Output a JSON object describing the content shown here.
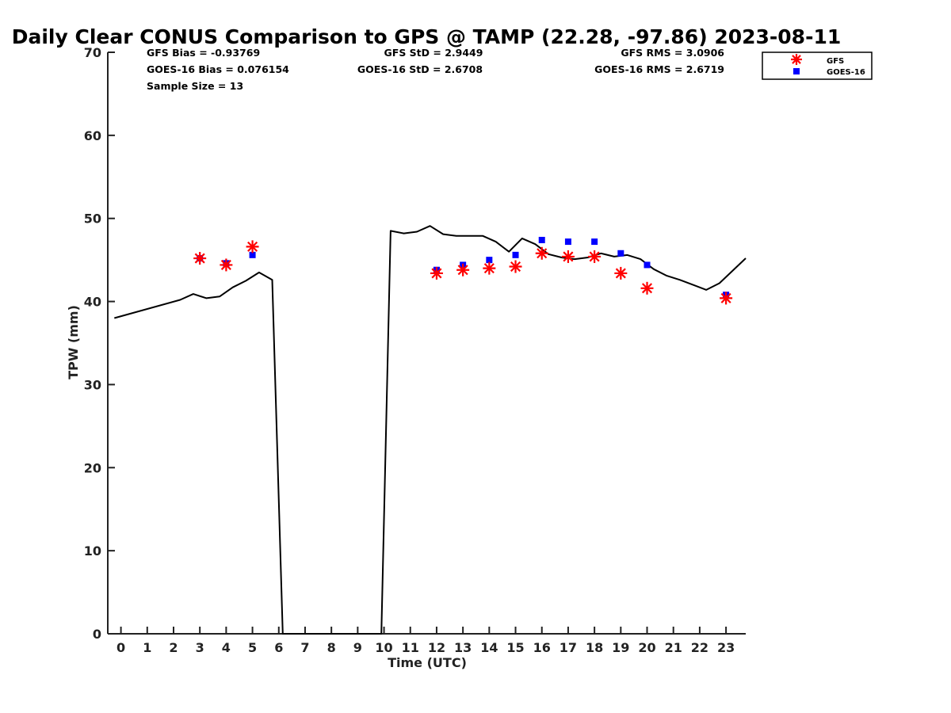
{
  "chart_data": {
    "type": "scatter",
    "title": "Daily Clear CONUS Comparison to GPS @ TAMP (22.28, -97.86) 2023-08-11",
    "xlabel": "Time (UTC)",
    "ylabel": "TPW (mm)",
    "xlim": [
      -0.5,
      23.75
    ],
    "ylim": [
      0,
      70
    ],
    "xticks": [
      "0",
      "1",
      "2",
      "3",
      "4",
      "5",
      "6",
      "7",
      "8",
      "9",
      "10",
      "11",
      "12",
      "13",
      "14",
      "15",
      "16",
      "17",
      "18",
      "19",
      "20",
      "21",
      "22",
      "23"
    ],
    "yticks": [
      "0",
      "10",
      "20",
      "30",
      "40",
      "50",
      "60",
      "70"
    ],
    "grid": false,
    "legend_position": "top-right (outside axes)",
    "stats": {
      "gfs_bias": "GFS Bias = -0.93769",
      "gfs_std": "GFS StD = 2.9449",
      "gfs_rms": "GFS RMS = 3.0906",
      "goes_bias": "GOES-16 Bias = 0.076154",
      "goes_std": "GOES-16 StD = 2.6708",
      "goes_rms": "GOES-16 RMS = 2.6719",
      "sample_size": "Sample Size = 13"
    },
    "series": [
      {
        "name": "GFS",
        "marker": "asterisk",
        "color": "#ff0000",
        "points": [
          [
            3.0,
            45.2
          ],
          [
            4.0,
            44.4
          ],
          [
            5.0,
            46.6
          ],
          [
            12.0,
            43.4
          ],
          [
            13.0,
            43.8
          ],
          [
            14.0,
            44.0
          ],
          [
            15.0,
            44.2
          ],
          [
            16.0,
            45.8
          ],
          [
            17.0,
            45.4
          ],
          [
            18.0,
            45.4
          ],
          [
            19.0,
            43.4
          ],
          [
            20.0,
            41.6
          ],
          [
            23.0,
            40.4
          ]
        ]
      },
      {
        "name": "GOES-16",
        "marker": "square",
        "color": "#0000ff",
        "points": [
          [
            3.0,
            45.2
          ],
          [
            4.0,
            44.6
          ],
          [
            5.0,
            45.6
          ],
          [
            12.0,
            43.8
          ],
          [
            13.0,
            44.4
          ],
          [
            14.0,
            45.0
          ],
          [
            15.0,
            45.6
          ],
          [
            16.0,
            47.4
          ],
          [
            17.0,
            47.2
          ],
          [
            18.0,
            47.2
          ],
          [
            19.0,
            45.8
          ],
          [
            20.0,
            44.4
          ],
          [
            23.0,
            40.8
          ]
        ]
      },
      {
        "name": "GPS",
        "line": true,
        "color": "#000000",
        "points": [
          [
            -0.25,
            38.0
          ],
          [
            2.25,
            40.2
          ],
          [
            2.75,
            40.9
          ],
          [
            3.25,
            40.4
          ],
          [
            3.75,
            40.6
          ],
          [
            4.25,
            41.7
          ],
          [
            4.75,
            42.5
          ],
          [
            5.25,
            43.5
          ],
          [
            5.75,
            42.6
          ],
          [
            6.15,
            0
          ],
          [
            9.9,
            0
          ],
          [
            10.25,
            48.5
          ],
          [
            10.75,
            48.2
          ],
          [
            11.25,
            48.4
          ],
          [
            11.75,
            49.1
          ],
          [
            12.25,
            48.1
          ],
          [
            12.75,
            47.9
          ],
          [
            13.25,
            47.9
          ],
          [
            13.75,
            47.9
          ],
          [
            14.25,
            47.2
          ],
          [
            14.75,
            46.0
          ],
          [
            15.25,
            47.6
          ],
          [
            15.75,
            46.9
          ],
          [
            16.25,
            45.7
          ],
          [
            16.75,
            45.3
          ],
          [
            17.25,
            45.1
          ],
          [
            17.75,
            45.3
          ],
          [
            18.25,
            45.8
          ],
          [
            18.75,
            45.4
          ],
          [
            19.25,
            45.6
          ],
          [
            19.75,
            45.1
          ],
          [
            20.25,
            43.9
          ],
          [
            20.75,
            43.1
          ],
          [
            21.25,
            42.6
          ],
          [
            21.75,
            42.0
          ],
          [
            22.25,
            41.4
          ],
          [
            22.75,
            42.2
          ],
          [
            23.75,
            45.2
          ]
        ]
      }
    ]
  }
}
